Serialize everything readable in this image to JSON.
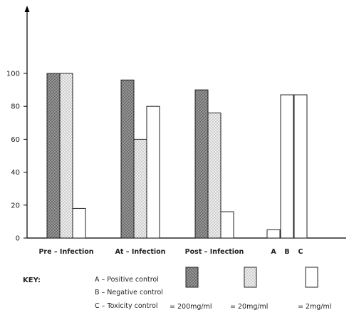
{
  "chart_data": {
    "type": "bar",
    "title": "",
    "xlabel": "",
    "ylabel": "",
    "ylim": [
      0,
      100
    ],
    "yticks": [
      0,
      20,
      40,
      60,
      80,
      100
    ],
    "grid": false,
    "categories": [
      "Pre – Infection",
      "At – Infection",
      "Post – Infection"
    ],
    "series": [
      {
        "name": "= 200mg/ml",
        "pattern": "crosshatch-gray",
        "values": [
          100,
          96,
          90
        ]
      },
      {
        "name": "= 20mg/ml",
        "pattern": "dotted",
        "values": [
          100,
          60,
          76
        ]
      },
      {
        "name": "= 2mg/ml",
        "pattern": "white",
        "values": [
          18,
          80,
          16
        ]
      }
    ],
    "controls": {
      "labels": [
        "A",
        "B",
        "C"
      ],
      "values": [
        5,
        87,
        87
      ]
    },
    "colors": {
      "axis": "#000000",
      "bar_outline": "#222222",
      "hatch_fill": "#8c8c8c",
      "dot_fill": "#e8e8e8"
    }
  },
  "key": {
    "title": "KEY:",
    "entries": [
      "A – Positive control",
      "B – Negative control",
      "C – Toxicity control"
    ],
    "swatch_labels": [
      "= 200mg/ml",
      "= 20mg/ml",
      "= 2mg/ml"
    ]
  }
}
